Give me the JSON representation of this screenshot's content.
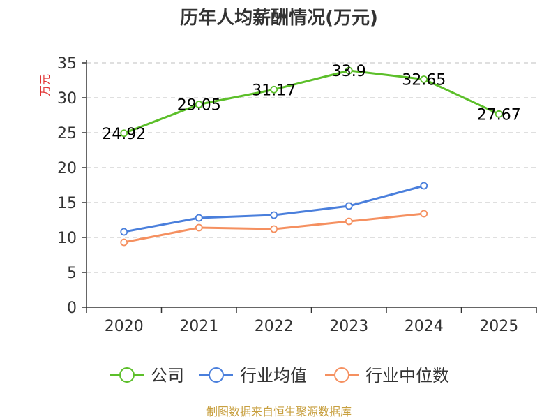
{
  "chart_data": {
    "type": "line",
    "title": "历年人均薪酬情况(万元)",
    "ylabel": "万元",
    "xlabel": "",
    "categories": [
      "2020",
      "2021",
      "2022",
      "2023",
      "2024",
      "2025"
    ],
    "ylim": [
      0,
      35
    ],
    "yticks": [
      0,
      5,
      10,
      15,
      20,
      25,
      30,
      35
    ],
    "grid": true,
    "legend_position": "bottom",
    "series": [
      {
        "name": "公司",
        "color": "#5cbf2a",
        "labeled": true,
        "values": [
          24.92,
          29.05,
          31.17,
          33.9,
          32.65,
          27.67
        ],
        "labels": [
          "24.92",
          "29.05",
          "31.17",
          "33.9",
          "32.65",
          "27.67"
        ]
      },
      {
        "name": "行业均值",
        "color": "#4a7fdc",
        "labeled": false,
        "values": [
          10.8,
          12.8,
          13.2,
          14.5,
          17.4,
          null
        ]
      },
      {
        "name": "行业中位数",
        "color": "#f59060",
        "labeled": false,
        "values": [
          9.3,
          11.4,
          11.2,
          12.3,
          13.4,
          null
        ]
      }
    ]
  },
  "source_note": "制图数据来自恒生聚源数据库"
}
